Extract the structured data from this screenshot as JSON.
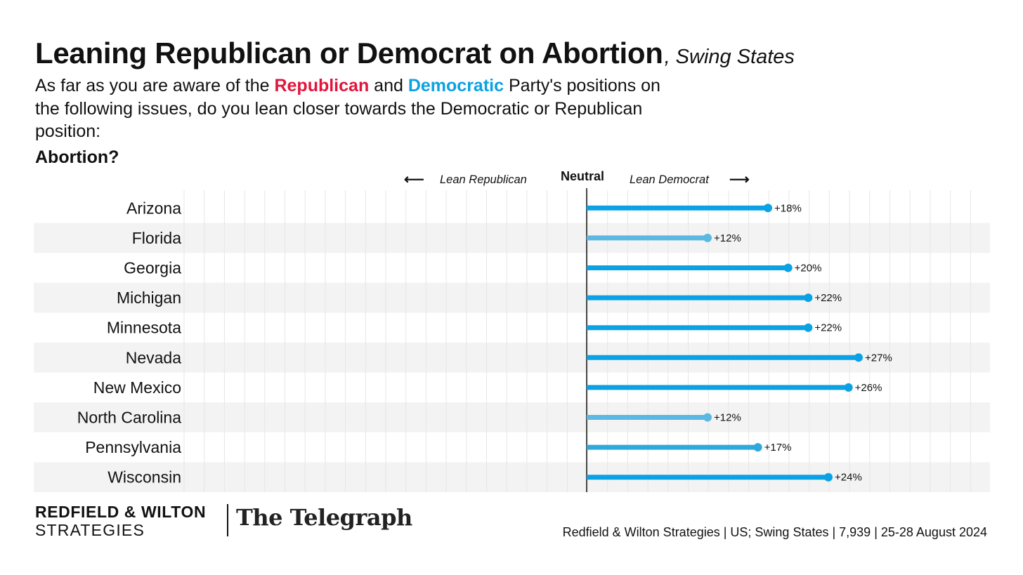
{
  "title": {
    "main": "Leaning Republican or Democrat on Abortion",
    "sub": ", Swing States"
  },
  "question": {
    "part1": "As far as you are aware of the ",
    "republican": "Republican",
    "part2": " and ",
    "democratic": "Democratic",
    "part3": " Party's positions on the following issues, do you lean closer towards the Democratic or Republican position:"
  },
  "issue": "Abortion?",
  "axis_labels": {
    "left": "Lean Republican",
    "center": "Neutral",
    "right": "Lean Democrat",
    "left_arrow": "⟵",
    "right_arrow": "⟶"
  },
  "colors": {
    "republican": "#e3143c",
    "democratic": "#0aa2e4",
    "bar_strong": "#0aa2e4",
    "bar_light": "#5ab8e2",
    "bar_mid": "#2fa8dc",
    "stripe": "#f3f3f3",
    "gridline": "#e6e6e6"
  },
  "chart_data": {
    "type": "bar",
    "orientation": "horizontal",
    "categories": [
      "Arizona",
      "Florida",
      "Georgia",
      "Michigan",
      "Minnesota",
      "Nevada",
      "New Mexico",
      "North Carolina",
      "Pennsylvania",
      "Wisconsin"
    ],
    "values": [
      18,
      12,
      20,
      22,
      22,
      27,
      26,
      12,
      17,
      24
    ],
    "value_labels": [
      "+18%",
      "+12%",
      "+20%",
      "+22%",
      "+22%",
      "+27%",
      "+26%",
      "+12%",
      "+17%",
      "+24%"
    ],
    "xlim": [
      -40,
      40
    ],
    "zero_line": "Neutral",
    "grid": true
  },
  "footer": {
    "logo_line1": "REDFIELD & WILTON",
    "logo_line2": "STRATEGIES",
    "partner": "The Telegraph",
    "source": "Redfield & Wilton Strategies | US; Swing States | 7,939 | 25-28 August 2024"
  }
}
